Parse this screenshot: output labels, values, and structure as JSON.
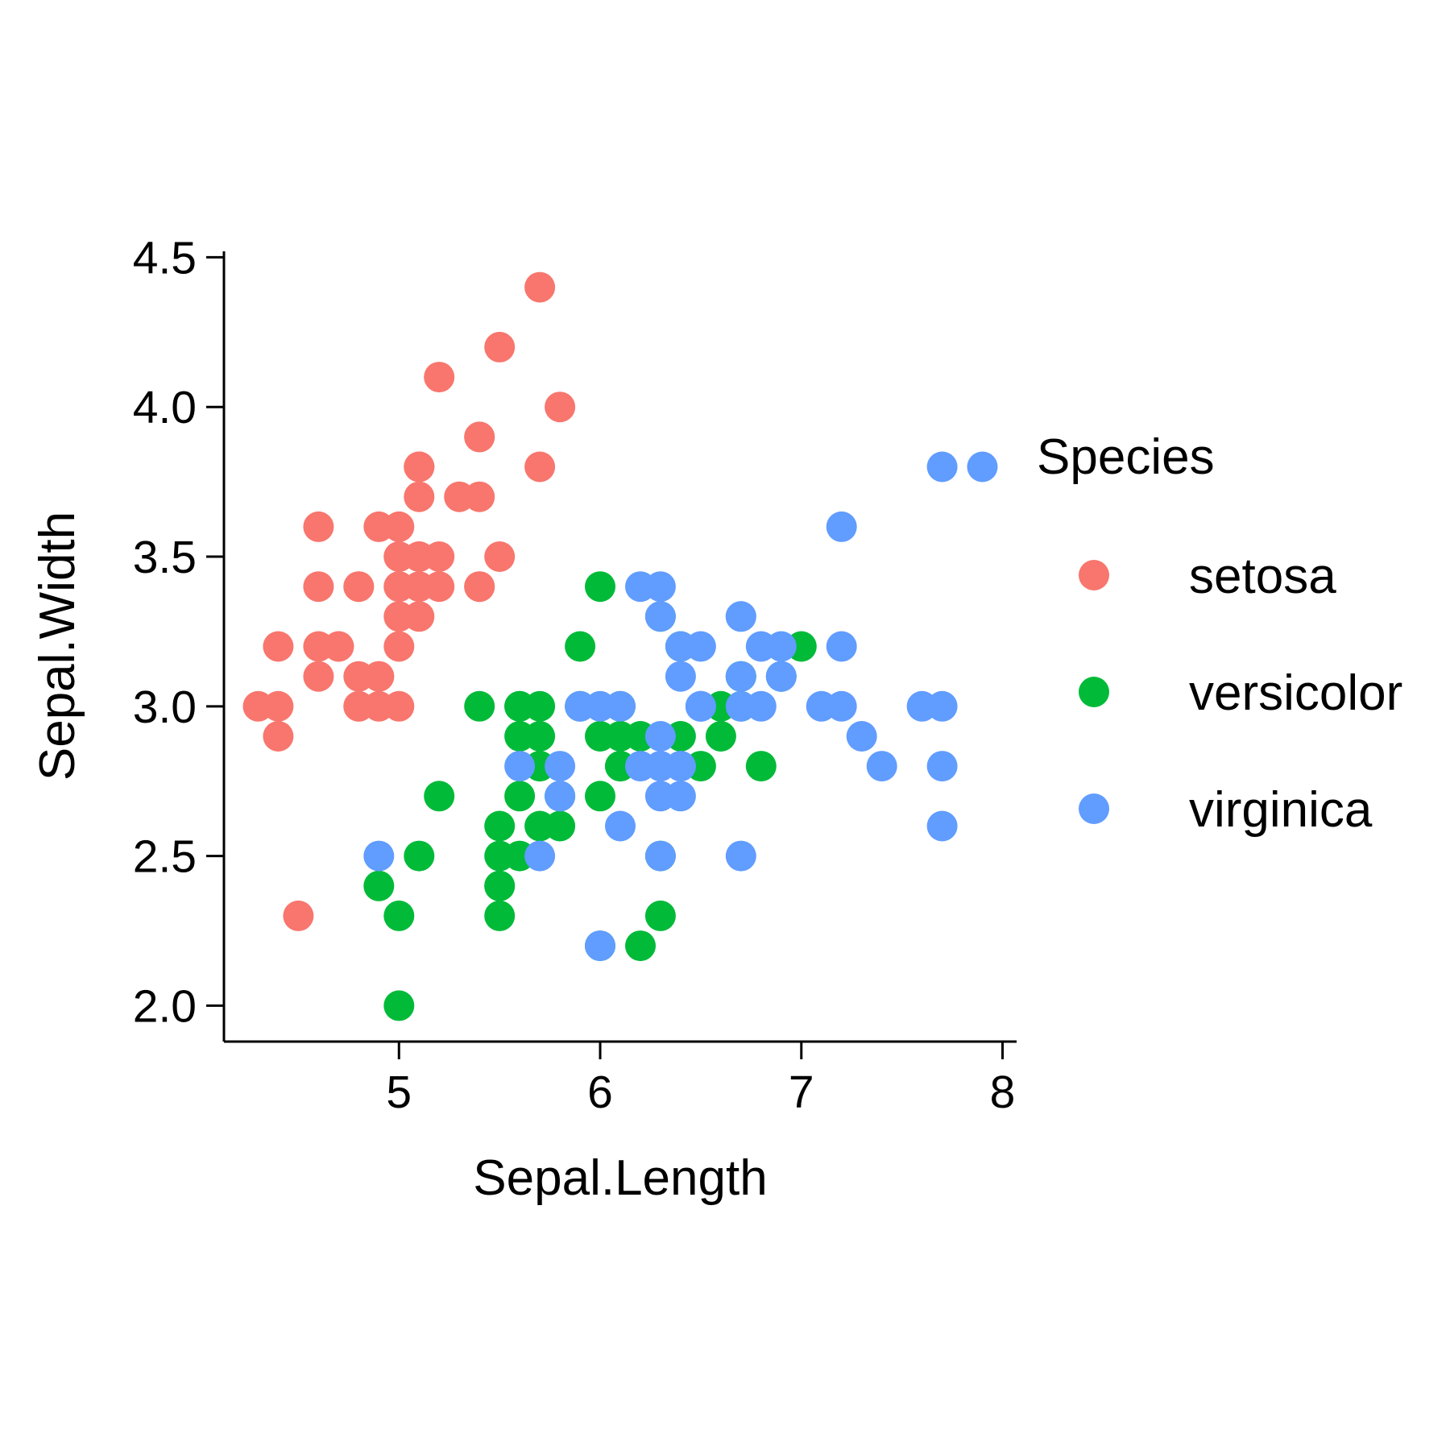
{
  "chart_data": {
    "type": "scatter",
    "xlabel": "Sepal.Length",
    "ylabel": "Sepal.Width",
    "xlim": [
      4.13,
      8.07
    ],
    "ylim": [
      1.88,
      4.52
    ],
    "xticks": [
      5,
      6,
      7,
      8
    ],
    "xtick_labels": [
      "5",
      "6",
      "7",
      "8"
    ],
    "yticks": [
      2.0,
      2.5,
      3.0,
      3.5,
      4.0,
      4.5
    ],
    "ytick_labels": [
      "2.0",
      "2.5",
      "3.0",
      "3.5",
      "4.0",
      "4.5"
    ],
    "grid": false,
    "legend": {
      "title": "Species",
      "position": "right"
    },
    "series": [
      {
        "name": "setosa",
        "color": "#F8766D",
        "points": [
          [
            5.1,
            3.5
          ],
          [
            4.9,
            3.0
          ],
          [
            4.7,
            3.2
          ],
          [
            4.6,
            3.1
          ],
          [
            5.0,
            3.6
          ],
          [
            5.4,
            3.9
          ],
          [
            4.6,
            3.4
          ],
          [
            5.0,
            3.4
          ],
          [
            4.4,
            2.9
          ],
          [
            4.9,
            3.1
          ],
          [
            5.4,
            3.7
          ],
          [
            4.8,
            3.4
          ],
          [
            4.8,
            3.0
          ],
          [
            4.3,
            3.0
          ],
          [
            5.8,
            4.0
          ],
          [
            5.7,
            4.4
          ],
          [
            5.4,
            3.9
          ],
          [
            5.1,
            3.5
          ],
          [
            5.7,
            3.8
          ],
          [
            5.1,
            3.8
          ],
          [
            5.4,
            3.4
          ],
          [
            5.1,
            3.7
          ],
          [
            4.6,
            3.6
          ],
          [
            5.1,
            3.3
          ],
          [
            4.8,
            3.4
          ],
          [
            5.0,
            3.0
          ],
          [
            5.0,
            3.4
          ],
          [
            5.2,
            3.5
          ],
          [
            5.2,
            3.4
          ],
          [
            4.7,
            3.2
          ],
          [
            4.8,
            3.1
          ],
          [
            5.4,
            3.4
          ],
          [
            5.2,
            4.1
          ],
          [
            5.5,
            4.2
          ],
          [
            4.9,
            3.1
          ],
          [
            5.0,
            3.2
          ],
          [
            5.5,
            3.5
          ],
          [
            4.9,
            3.6
          ],
          [
            4.4,
            3.0
          ],
          [
            5.1,
            3.4
          ],
          [
            5.0,
            3.5
          ],
          [
            4.5,
            2.3
          ],
          [
            4.4,
            3.2
          ],
          [
            5.0,
            3.5
          ],
          [
            5.1,
            3.8
          ],
          [
            4.8,
            3.0
          ],
          [
            5.1,
            3.8
          ],
          [
            4.6,
            3.2
          ],
          [
            5.3,
            3.7
          ],
          [
            5.0,
            3.3
          ]
        ]
      },
      {
        "name": "versicolor",
        "color": "#00BA38",
        "points": [
          [
            7.0,
            3.2
          ],
          [
            6.4,
            3.2
          ],
          [
            6.9,
            3.1
          ],
          [
            5.5,
            2.3
          ],
          [
            6.5,
            2.8
          ],
          [
            5.7,
            2.8
          ],
          [
            6.3,
            3.3
          ],
          [
            4.9,
            2.4
          ],
          [
            6.6,
            2.9
          ],
          [
            5.2,
            2.7
          ],
          [
            5.0,
            2.0
          ],
          [
            5.9,
            3.0
          ],
          [
            6.0,
            2.2
          ],
          [
            6.1,
            2.9
          ],
          [
            5.6,
            2.9
          ],
          [
            6.7,
            3.1
          ],
          [
            5.6,
            3.0
          ],
          [
            5.8,
            2.7
          ],
          [
            6.2,
            2.2
          ],
          [
            5.6,
            2.5
          ],
          [
            5.9,
            3.2
          ],
          [
            6.1,
            2.8
          ],
          [
            6.3,
            2.5
          ],
          [
            6.1,
            2.8
          ],
          [
            6.4,
            2.9
          ],
          [
            6.6,
            3.0
          ],
          [
            6.8,
            2.8
          ],
          [
            6.7,
            3.0
          ],
          [
            6.0,
            2.9
          ],
          [
            5.7,
            2.6
          ],
          [
            5.5,
            2.4
          ],
          [
            5.5,
            2.4
          ],
          [
            5.8,
            2.7
          ],
          [
            6.0,
            2.7
          ],
          [
            5.4,
            3.0
          ],
          [
            6.0,
            3.4
          ],
          [
            6.7,
            3.1
          ],
          [
            6.3,
            2.3
          ],
          [
            5.6,
            3.0
          ],
          [
            5.5,
            2.5
          ],
          [
            5.5,
            2.6
          ],
          [
            6.1,
            3.0
          ],
          [
            5.8,
            2.6
          ],
          [
            5.0,
            2.3
          ],
          [
            5.6,
            2.7
          ],
          [
            5.7,
            3.0
          ],
          [
            5.7,
            2.9
          ],
          [
            6.2,
            2.9
          ],
          [
            5.1,
            2.5
          ],
          [
            5.7,
            2.8
          ]
        ]
      },
      {
        "name": "virginica",
        "color": "#619CFF",
        "points": [
          [
            6.3,
            3.3
          ],
          [
            5.8,
            2.7
          ],
          [
            7.1,
            3.0
          ],
          [
            6.3,
            2.9
          ],
          [
            6.5,
            3.0
          ],
          [
            7.6,
            3.0
          ],
          [
            4.9,
            2.5
          ],
          [
            7.3,
            2.9
          ],
          [
            6.7,
            2.5
          ],
          [
            7.2,
            3.6
          ],
          [
            6.5,
            3.2
          ],
          [
            6.4,
            2.7
          ],
          [
            6.8,
            3.0
          ],
          [
            5.7,
            2.5
          ],
          [
            5.8,
            2.8
          ],
          [
            6.4,
            3.2
          ],
          [
            6.5,
            3.0
          ],
          [
            7.7,
            3.8
          ],
          [
            7.7,
            2.6
          ],
          [
            6.0,
            2.2
          ],
          [
            6.9,
            3.2
          ],
          [
            5.6,
            2.8
          ],
          [
            7.7,
            2.8
          ],
          [
            6.3,
            2.7
          ],
          [
            6.7,
            3.3
          ],
          [
            7.2,
            3.2
          ],
          [
            6.2,
            2.8
          ],
          [
            6.1,
            3.0
          ],
          [
            6.4,
            2.8
          ],
          [
            7.2,
            3.0
          ],
          [
            7.4,
            2.8
          ],
          [
            7.9,
            3.8
          ],
          [
            6.4,
            2.8
          ],
          [
            6.3,
            2.8
          ],
          [
            6.1,
            2.6
          ],
          [
            7.7,
            3.0
          ],
          [
            6.3,
            3.4
          ],
          [
            6.4,
            3.1
          ],
          [
            6.0,
            3.0
          ],
          [
            6.9,
            3.1
          ],
          [
            6.7,
            3.1
          ],
          [
            6.9,
            3.1
          ],
          [
            5.8,
            2.7
          ],
          [
            6.8,
            3.2
          ],
          [
            6.7,
            3.3
          ],
          [
            6.7,
            3.0
          ],
          [
            6.3,
            2.5
          ],
          [
            6.5,
            3.0
          ],
          [
            6.2,
            3.4
          ],
          [
            5.9,
            3.0
          ]
        ]
      }
    ]
  }
}
